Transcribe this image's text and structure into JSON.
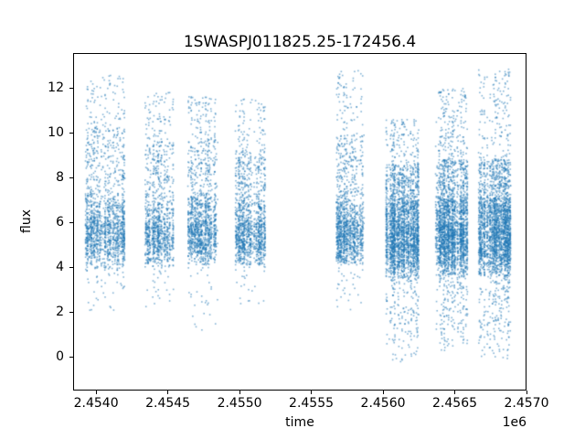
{
  "chart_data": {
    "type": "scatter",
    "title": "1SWASPJ011825.25-172456.4",
    "xlabel": "time",
    "ylabel": "flux",
    "x_offset_label": "1e6",
    "marker_color": "#1f77b4",
    "marker_alpha": 0.55,
    "grid": false,
    "legend_position": "none",
    "xlim": [
      2453840,
      2457000
    ],
    "ylim": [
      -1.5,
      13.55
    ],
    "xticks": {
      "values": [
        2454000,
        2454500,
        2455000,
        2455500,
        2456000,
        2456500,
        2457000
      ],
      "labels": [
        "2.4540",
        "2.4545",
        "2.4550",
        "2.4555",
        "2.4560",
        "2.4565",
        "2.4570"
      ]
    },
    "yticks": {
      "values": [
        0,
        2,
        4,
        6,
        8,
        10,
        12
      ],
      "labels": [
        "0",
        "2",
        "4",
        "6",
        "8",
        "10",
        "12"
      ]
    },
    "seed": 42,
    "clusters": [
      {
        "x0": 2453925,
        "x1": 2454200,
        "n": 1600,
        "core_mu": 5.5,
        "core_sd": 0.85,
        "hi": 10.2,
        "top": 12.6,
        "lo": 3.9,
        "bot": 1.8,
        "p_low": 0.025
      },
      {
        "x0": 2454340,
        "x1": 2454540,
        "n": 1100,
        "core_mu": 5.4,
        "core_sd": 0.8,
        "hi": 9.6,
        "top": 11.8,
        "lo": 4.0,
        "bot": 2.2,
        "p_low": 0.02
      },
      {
        "x0": 2454640,
        "x1": 2454850,
        "n": 1300,
        "core_mu": 5.5,
        "core_sd": 0.85,
        "hi": 9.8,
        "top": 11.6,
        "lo": 4.1,
        "bot": 1.0,
        "p_low": 0.02
      },
      {
        "x0": 2454970,
        "x1": 2455180,
        "n": 1300,
        "core_mu": 5.3,
        "core_sd": 0.8,
        "hi": 9.2,
        "top": 11.5,
        "lo": 4.1,
        "bot": 2.0,
        "p_low": 0.02
      },
      {
        "x0": 2455670,
        "x1": 2455870,
        "n": 1300,
        "core_mu": 5.4,
        "core_sd": 0.85,
        "hi": 10.0,
        "top": 12.8,
        "lo": 4.1,
        "bot": 1.7,
        "p_low": 0.02
      },
      {
        "x0": 2456020,
        "x1": 2456250,
        "n": 2600,
        "core_mu": 5.2,
        "core_sd": 1.0,
        "hi": 8.6,
        "top": 10.6,
        "lo": 3.4,
        "bot": -0.3,
        "p_low": 0.07
      },
      {
        "x0": 2456365,
        "x1": 2456590,
        "n": 2600,
        "core_mu": 5.3,
        "core_sd": 1.0,
        "hi": 8.8,
        "top": 12.0,
        "lo": 3.6,
        "bot": 0.2,
        "p_low": 0.07
      },
      {
        "x0": 2456665,
        "x1": 2456890,
        "n": 2600,
        "core_mu": 5.3,
        "core_sd": 1.0,
        "hi": 8.8,
        "top": 12.9,
        "lo": 3.6,
        "bot": -0.2,
        "p_low": 0.07
      }
    ]
  }
}
